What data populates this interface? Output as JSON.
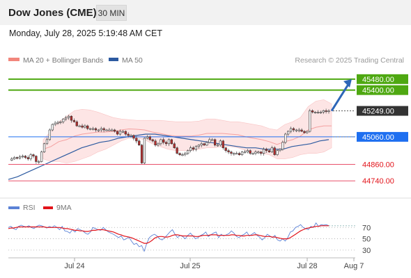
{
  "header": {
    "instrument": "Dow Jones (CME)",
    "timeframe": "30 MIN",
    "datetime": "Monday, July 28, 2025 5:19:48 AM CET"
  },
  "legend": {
    "ma20_bb": "MA 20 + Bollinger Bands",
    "ma50": "MA 50",
    "credit": "Research © 2025 Trading Central",
    "rsi": "RSI",
    "ma9": "9MA"
  },
  "colors": {
    "green_level": "#4ea811",
    "blue_level": "#1e6ff0",
    "red_level": "#e8506a",
    "bollinger_fill": "#fde0e0",
    "ma50": "#2c5aa0",
    "rsi": "#5b82d6",
    "ma9": "#e2131a",
    "arrow": "#2d66b8"
  },
  "chart_data": [
    {
      "type": "candlestick",
      "title": "Dow Jones (CME)",
      "timeframe": "30 MIN",
      "ylim": [
        44640,
        45560
      ],
      "x_ticks": [
        "Jul 24",
        "Jul 25",
        "Jul 28",
        "Aug 7"
      ],
      "levels": [
        {
          "value": 45480.0,
          "label": "45480.00",
          "kind": "resistance"
        },
        {
          "value": 45400.0,
          "label": "45400.00",
          "kind": "resistance"
        },
        {
          "value": 45249.0,
          "label": "45249.00",
          "kind": "last"
        },
        {
          "value": 45060.0,
          "label": "45060.00",
          "kind": "pivot"
        },
        {
          "value": 44860.0,
          "label": "44860.00",
          "kind": "support"
        },
        {
          "value": 44740.0,
          "label": "44740.00",
          "kind": "support"
        }
      ],
      "price_path": [
        44890,
        44900,
        44910,
        44905,
        44915,
        44920,
        44910,
        44900,
        44930,
        44920,
        44880,
        44880,
        44950,
        45010,
        45040,
        45110,
        45150,
        45160,
        45165,
        45170,
        45190,
        45200,
        45210,
        45180,
        45170,
        45140,
        45140,
        45130,
        45140,
        45120,
        45120,
        45120,
        45110,
        45110,
        45120,
        45110,
        45110,
        45110,
        45110,
        45100,
        45080,
        45100,
        45100,
        45080,
        45070,
        45070,
        45050,
        45030,
        45000,
        44870,
        45050,
        45060,
        45040,
        45030,
        45000,
        45010,
        45040,
        45020,
        45010,
        45040,
        45010,
        44980,
        44940,
        44930,
        44930,
        44940,
        44960,
        44980,
        44970,
        44990,
        45000,
        45010,
        45000,
        45020,
        45040,
        45040,
        45000,
        45000,
        45030,
        44980,
        44960,
        44950,
        44940,
        44940,
        44940,
        44930,
        44950,
        44950,
        44960,
        44940,
        44940,
        44950,
        44950,
        44940,
        44970,
        44960,
        44950,
        44980,
        44930,
        44960,
        44970,
        45020,
        45080,
        45100,
        45120,
        45110,
        45110,
        45110,
        45100,
        45090,
        45100,
        45250,
        45240,
        45240,
        45240,
        45240,
        45250,
        45245,
        45249
      ],
      "bollinger_upper": [
        45040,
        45100,
        45170,
        45210,
        45250,
        45260,
        45255,
        45240,
        45220,
        45200,
        45190,
        45185,
        45180,
        45180,
        45180,
        45180,
        45175,
        45170,
        45170,
        45170,
        45175,
        45190,
        45190,
        45180,
        45170,
        45170,
        45160,
        45150,
        45140,
        45120,
        45110,
        45150,
        45170,
        45200,
        45280,
        45320,
        45330,
        45300
      ],
      "bollinger_lower": [
        44900,
        44880,
        44880,
        44870,
        44880,
        44900,
        44920,
        44950,
        44970,
        45000,
        45030,
        45050,
        45050,
        45040,
        45010,
        44990,
        44970,
        44960,
        44960,
        44960,
        44970,
        44980,
        44980,
        44990,
        44990,
        44980,
        44960,
        44950,
        44940,
        44930,
        44900,
        44900,
        44910,
        44930,
        44940,
        44940,
        44950,
        44980
      ],
      "ma50": [
        44750,
        44770,
        44800,
        44830,
        44860,
        44890,
        44920,
        44950,
        44980,
        45000,
        45020,
        45030,
        45050,
        45060,
        45070,
        45080,
        45080,
        45070,
        45060,
        45050,
        45040,
        45030,
        45020,
        45010,
        45000,
        44990,
        44980,
        44980,
        44970,
        44970,
        44970,
        44990,
        45000,
        45010,
        45030,
        45040
      ],
      "forecast": {
        "from": 45249.0,
        "to": 45480.0
      }
    },
    {
      "type": "line",
      "title": "RSI",
      "ylim": [
        20,
        90
      ],
      "y_ticks": [
        70,
        50,
        30
      ],
      "series": [
        {
          "name": "RSI",
          "values": [
            70,
            72,
            68,
            66,
            72,
            74,
            72,
            71,
            73,
            70,
            68,
            72,
            74,
            73,
            71,
            69,
            72,
            70,
            73,
            70,
            66,
            72,
            64,
            63,
            60,
            66,
            62,
            68,
            66,
            64,
            60,
            58,
            62,
            70,
            68,
            66,
            65,
            70,
            66,
            62,
            60,
            58,
            55,
            52,
            55,
            48,
            50,
            53,
            46,
            40,
            42,
            36,
            38,
            28,
            42,
            52,
            56,
            58,
            55,
            50,
            48,
            52,
            57,
            62,
            66,
            58,
            52,
            56,
            54,
            50,
            56,
            60,
            55,
            50,
            52,
            56,
            58,
            62,
            54,
            57,
            60,
            62,
            52,
            58,
            55,
            57,
            59,
            64,
            60,
            54,
            52,
            56,
            58,
            62,
            55,
            58,
            61,
            56,
            53,
            48,
            52,
            58,
            55,
            52,
            56,
            48,
            46,
            50,
            46,
            52,
            62,
            64,
            70,
            72,
            75,
            70,
            68,
            66,
            72,
            70,
            78,
            72,
            75,
            74,
            75,
            73
          ]
        },
        {
          "name": "9MA",
          "values": [
            68,
            69,
            69,
            70,
            71,
            71,
            71,
            71,
            71,
            71,
            71,
            71,
            71,
            71,
            71,
            70,
            70,
            70,
            70,
            70,
            70,
            69,
            68,
            68,
            67,
            66,
            65,
            65,
            64,
            64,
            63,
            63,
            64,
            65,
            65,
            66,
            66,
            66,
            65,
            64,
            63,
            62,
            60,
            58,
            57,
            55,
            54,
            53,
            52,
            50,
            48,
            46,
            44,
            42,
            42,
            44,
            47,
            51,
            53,
            54,
            54,
            53,
            53,
            54,
            56,
            57,
            57,
            56,
            55,
            55,
            55,
            55,
            55,
            54,
            54,
            55,
            56,
            56,
            56,
            57,
            57,
            57,
            56,
            56,
            56,
            56,
            56,
            57,
            57,
            56,
            56,
            55,
            55,
            56,
            56,
            56,
            57,
            57,
            56,
            55,
            54,
            54,
            54,
            53,
            53,
            52,
            51,
            50,
            50,
            50,
            52,
            55,
            58,
            61,
            64,
            66,
            68,
            69,
            70,
            71,
            72,
            72,
            73,
            73,
            73,
            73
          ]
        }
      ]
    }
  ]
}
